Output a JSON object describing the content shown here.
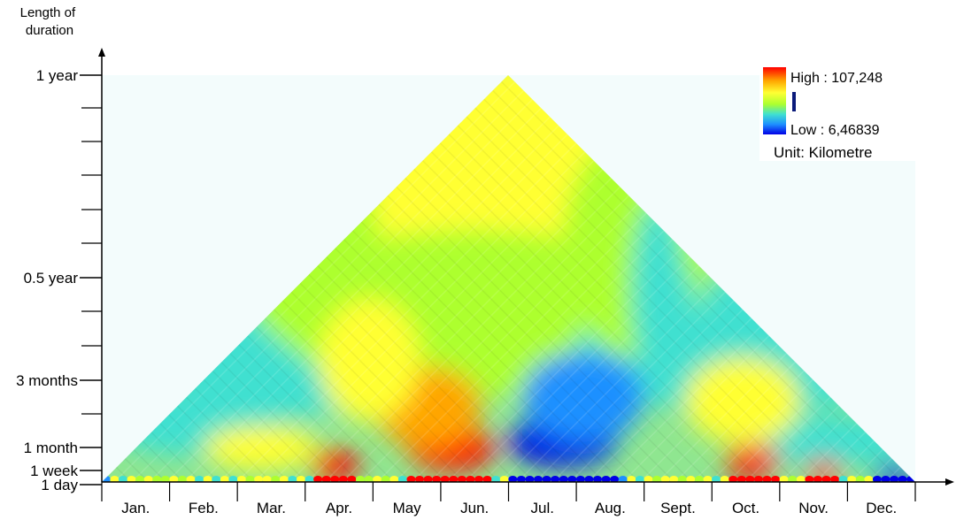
{
  "chart_data": {
    "type": "heatmap",
    "title": "",
    "ylabel": "Length of\nduration",
    "xlabel": "",
    "x_categories": [
      "Jan.",
      "Feb.",
      "Mar.",
      "Apr.",
      "May",
      "Jun.",
      "Jul.",
      "Aug.",
      "Sept.",
      "Oct.",
      "Nov.",
      "Dec."
    ],
    "y_ticks": [
      {
        "label": "1 day",
        "days": 1
      },
      {
        "label": "1 week",
        "days": 7
      },
      {
        "label": "1 month",
        "days": 30
      },
      {
        "label": "3 months",
        "days": 91
      },
      {
        "label": "0.5 year",
        "days": 182
      },
      {
        "label": "1 year",
        "days": 365
      }
    ],
    "ylim_days": [
      1,
      365
    ],
    "colorbar": {
      "high_label": "High : 107,248",
      "low_label": "Low : 6,46839",
      "unit_label": "Unit: Kilometre",
      "high": 107.248,
      "low": 6.46839,
      "colors": [
        "#0000e6",
        "#1e90ff",
        "#40e0d0",
        "#adff2f",
        "#ffff33",
        "#ffa500",
        "#ff0000"
      ]
    },
    "high_regions": [
      {
        "start_month": 3.1,
        "end_month": 3.8,
        "duration_months": 0.5,
        "value": 100
      },
      {
        "start_month": 4.5,
        "end_month": 5.8,
        "duration_months": 1.0,
        "value": 107
      },
      {
        "start_month": 4.0,
        "end_month": 5.6,
        "duration_months": 2.2,
        "value": 95
      },
      {
        "start_month": 3.2,
        "end_month": 4.7,
        "duration_months": 3.6,
        "value": 82
      },
      {
        "start_month": 9.2,
        "end_month": 10.0,
        "duration_months": 0.6,
        "value": 102
      },
      {
        "start_month": 10.4,
        "end_month": 10.9,
        "duration_months": 0.3,
        "value": 100
      },
      {
        "start_month": 8.6,
        "end_month": 10.3,
        "duration_months": 2.4,
        "value": 78
      }
    ],
    "low_regions": [
      {
        "start_month": 6.0,
        "end_month": 7.6,
        "duration_months": 1.2,
        "value": 7
      },
      {
        "start_month": 6.2,
        "end_month": 8.0,
        "duration_months": 2.5,
        "value": 22
      },
      {
        "start_month": 7.9,
        "end_month": 8.8,
        "duration_months": 4.5,
        "value": 35
      },
      {
        "start_month": 11.4,
        "end_month": 12.0,
        "duration_months": 0.2,
        "value": 10
      }
    ]
  }
}
